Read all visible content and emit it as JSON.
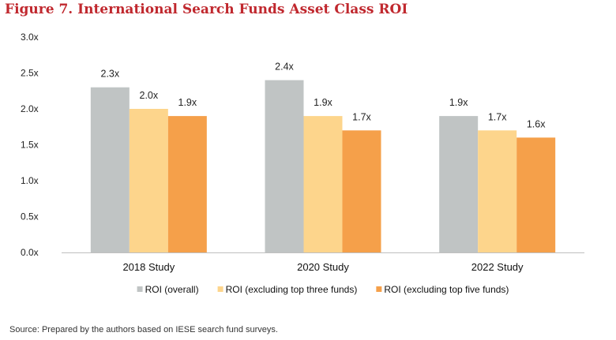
{
  "figure_title": "Figure 7. International Search Funds Asset Class ROI",
  "source_note": "Source: Prepared by the authors based on IESE search fund surveys.",
  "chart_data": {
    "type": "bar",
    "title": "",
    "xlabel": "",
    "ylabel": "",
    "categories": [
      "2018 Study",
      "2020 Study",
      "2022 Study"
    ],
    "ylim": [
      0,
      3.0
    ],
    "yticks": [
      "0.0x",
      "0.5x",
      "1.0x",
      "1.5x",
      "2.0x",
      "2.5x",
      "3.0x"
    ],
    "ytick_values": [
      0,
      0.5,
      1.0,
      1.5,
      2.0,
      2.5,
      3.0
    ],
    "grid": false,
    "legend_position": "bottom",
    "series": [
      {
        "name": "ROI (overall)",
        "color": "#c0c4c4",
        "values": [
          2.3,
          2.4,
          1.9
        ],
        "labels": [
          "2.3x",
          "2.4x",
          "1.9x"
        ]
      },
      {
        "name": "ROI (excluding top three funds)",
        "color": "#fdd58c",
        "values": [
          2.0,
          1.9,
          1.7
        ],
        "labels": [
          "2.0x",
          "1.9x",
          "1.7x"
        ]
      },
      {
        "name": "ROI (excluding top five funds)",
        "color": "#f5a04a",
        "values": [
          1.9,
          1.7,
          1.6
        ],
        "labels": [
          "1.9x",
          "1.7x",
          "1.6x"
        ]
      }
    ]
  }
}
